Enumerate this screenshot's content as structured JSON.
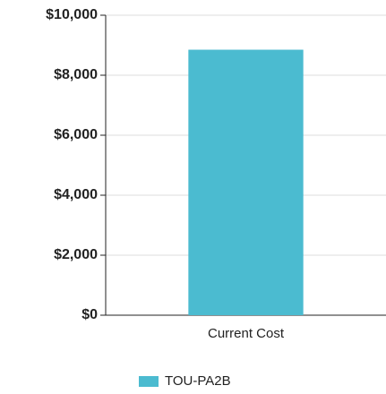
{
  "chart_data": {
    "type": "bar",
    "categories": [
      "Current Cost"
    ],
    "series": [
      {
        "name": "TOU-PA2B",
        "color": "#4bbbd0",
        "values": [
          8850
        ]
      }
    ],
    "ylim": [
      0,
      10000
    ],
    "yticks": [
      {
        "value": 0,
        "label": "$0"
      },
      {
        "value": 2000,
        "label": "$2,000"
      },
      {
        "value": 4000,
        "label": "$4,000"
      },
      {
        "value": 6000,
        "label": "$6,000"
      },
      {
        "value": 8000,
        "label": "$8,000"
      },
      {
        "value": 10000,
        "label": "$10,000"
      }
    ],
    "grid": true
  }
}
